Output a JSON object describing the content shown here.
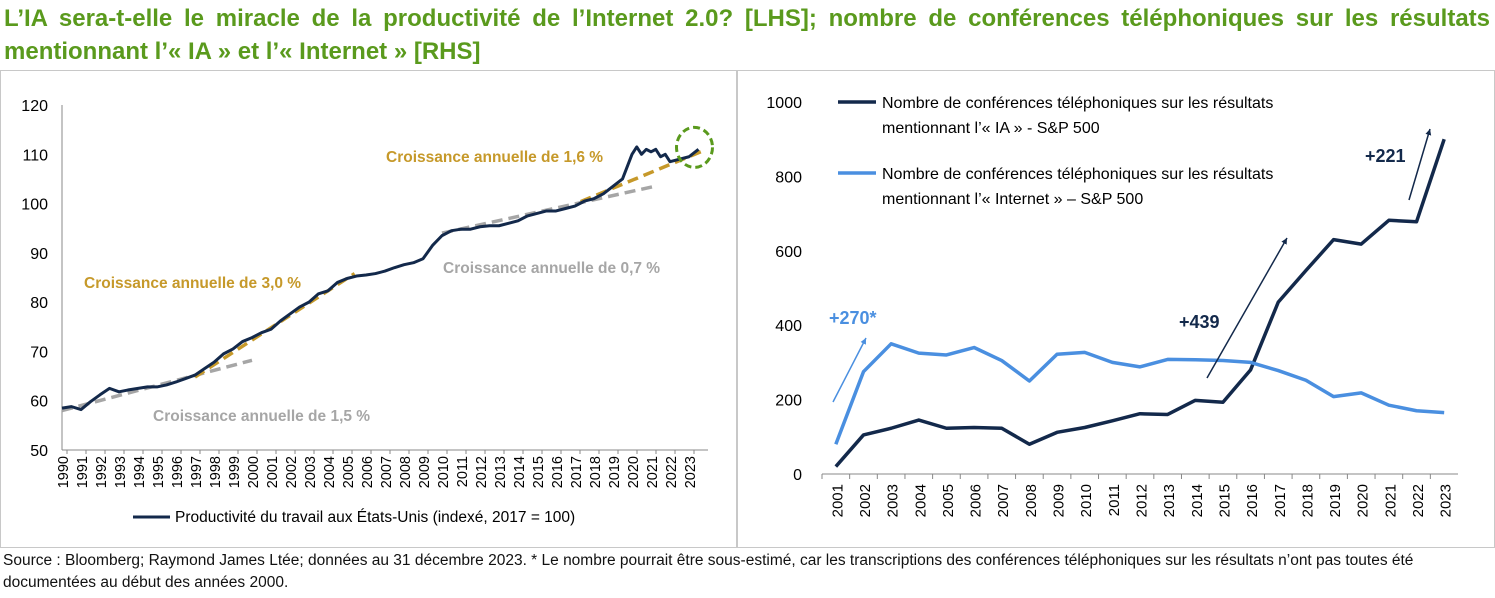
{
  "title": "L’IA sera-t-elle le miracle de la productivité de l’Internet 2.0? [LHS]; nombre de conférences téléphoniques sur les résultats mentionnant l’« IA » et l’« Internet » [RHS]",
  "source": "Source : Bloomberg; Raymond James Ltée; données au 31 décembre 2023. * Le nombre pourrait être sous-estimé, car les transcriptions des conférences téléphoniques sur les résultats n’ont pas toutes été documentées au début des années 2000.",
  "colors": {
    "title": "#5a9a1d",
    "navy": "#13294b",
    "blue": "#4a8fe0",
    "gold": "#c6992a",
    "grey": "#a6a6a6",
    "green_circle": "#5a9a1d"
  },
  "chart_data": [
    {
      "type": "line",
      "ylim": [
        50,
        120
      ],
      "yticks": [
        50,
        60,
        70,
        80,
        90,
        100,
        110,
        120
      ],
      "xlim": [
        1990,
        2024
      ],
      "xticks": [
        "1990",
        "1991",
        "1992",
        "1993",
        "1994",
        "1995",
        "1996",
        "1997",
        "1998",
        "1999",
        "2000",
        "2001",
        "2002",
        "2003",
        "2004",
        "2005",
        "2006",
        "2007",
        "2008",
        "2009",
        "2010",
        "2011",
        "2012",
        "2013",
        "2014",
        "2015",
        "2016",
        "2017",
        "2018",
        "2019",
        "2020",
        "2021",
        "2022",
        "2023"
      ],
      "series": [
        {
          "name": "Productivité du travail aux États-Unis (indexé, 2017 = 100)",
          "color": "#13294b",
          "x": [
            1990,
            1990.5,
            1991,
            1991.5,
            1992,
            1992.5,
            1993,
            1993.5,
            1994,
            1994.5,
            1995,
            1995.5,
            1996,
            1996.5,
            1997,
            1997.5,
            1998,
            1998.5,
            1999,
            1999.5,
            2000,
            2000.5,
            2001,
            2001.5,
            2002,
            2002.5,
            2003,
            2003.5,
            2004,
            2004.5,
            2005,
            2005.5,
            2006,
            2006.5,
            2007,
            2007.5,
            2008,
            2008.5,
            2009,
            2009.5,
            2010,
            2010.5,
            2011,
            2011.5,
            2012,
            2012.5,
            2013,
            2013.5,
            2014,
            2014.5,
            2015,
            2015.5,
            2016,
            2016.5,
            2017,
            2017.5,
            2018,
            2018.5,
            2019,
            2019.5,
            2020,
            2020.25,
            2020.5,
            2020.75,
            2021,
            2021.25,
            2021.5,
            2021.75,
            2022,
            2022.5,
            2023,
            2023.5
          ],
          "y": [
            58.5,
            58.8,
            58.2,
            59.8,
            61.2,
            62.5,
            61.8,
            62.2,
            62.5,
            62.8,
            62.8,
            63.2,
            63.8,
            64.5,
            65.2,
            66.5,
            67.8,
            69.5,
            70.5,
            72.0,
            72.8,
            73.8,
            74.5,
            76.2,
            77.6,
            79.0,
            80.0,
            81.7,
            82.3,
            84.0,
            84.8,
            85.3,
            85.5,
            85.8,
            86.3,
            87.0,
            87.6,
            88.0,
            88.8,
            91.5,
            93.5,
            94.5,
            94.8,
            94.8,
            95.3,
            95.5,
            95.5,
            96.0,
            96.5,
            97.5,
            98.0,
            98.5,
            98.5,
            99.0,
            99.5,
            100.5,
            101.0,
            102.0,
            103.5,
            105.0,
            110.0,
            111.5,
            110.0,
            111.0,
            110.5,
            111.0,
            109.5,
            110.0,
            108.5,
            109.0,
            109.5,
            111.0
          ]
        },
        {
          "name": "Croissance annuelle de 1,5 %",
          "color": "#a6a6a6",
          "x": [
            1990,
            2000
          ],
          "y": [
            58.0,
            68.2
          ]
        },
        {
          "name": "Croissance annuelle  de 3,0 %",
          "color": "#c6992a",
          "x": [
            1997,
            2005.4
          ],
          "y": [
            64.8,
            85.8
          ]
        },
        {
          "name": "Croissance annuelle de 0,7 %",
          "color": "#a6a6a6",
          "x": [
            2010,
            2021.2
          ],
          "y": [
            94.0,
            103.5
          ]
        },
        {
          "name": "Croissance annuelle de 1,6 %",
          "color": "#c6992a",
          "x": [
            2017.3,
            2023.8
          ],
          "y": [
            100.4,
            110.8
          ]
        }
      ],
      "annotations": [
        {
          "text": "Croissance annuelle de 1,6 %",
          "color": "#c6992a"
        },
        {
          "text": "Croissance annuelle  de 3,0 %",
          "color": "#c6992a"
        },
        {
          "text": "Croissance annuelle de 0,7 %",
          "color": "#a6a6a6"
        },
        {
          "text": "Croissance annuelle de 1,5 %",
          "color": "#a6a6a6"
        }
      ],
      "legend": "bottom"
    },
    {
      "type": "line",
      "ylim": [
        0,
        1000
      ],
      "yticks": [
        0,
        200,
        400,
        600,
        800,
        1000
      ],
      "categories": [
        "2001",
        "2002",
        "2003",
        "2004",
        "2005",
        "2006",
        "2007",
        "2008",
        "2009",
        "2010",
        "2011",
        "2012",
        "2013",
        "2014",
        "2015",
        "2016",
        "2017",
        "2018",
        "2019",
        "2020",
        "2021",
        "2022",
        "2023"
      ],
      "series": [
        {
          "name": "Nombre de conférences téléphoniques sur les résultats mentionnant l’« IA » - S&P 500",
          "color": "#13294b",
          "values": [
            20,
            105,
            123,
            145,
            123,
            125,
            123,
            80,
            112,
            125,
            143,
            162,
            160,
            198,
            193,
            280,
            462,
            547,
            630,
            618,
            682,
            678,
            900
          ]
        },
        {
          "name": "Nombre de conférences téléphoniques sur les résultats mentionnant l’« Internet » – S&P 500",
          "color": "#4a8fe0",
          "values": [
            80,
            275,
            350,
            325,
            320,
            340,
            305,
            250,
            322,
            327,
            300,
            288,
            308,
            307,
            305,
            300,
            278,
            252,
            208,
            218,
            185,
            170,
            165
          ]
        }
      ],
      "annotations": [
        {
          "text": "+270*",
          "color": "#4a8fe0"
        },
        {
          "text": "+439",
          "color": "#13294b"
        },
        {
          "text": "+221",
          "color": "#13294b"
        }
      ],
      "legend": "top-left"
    }
  ]
}
